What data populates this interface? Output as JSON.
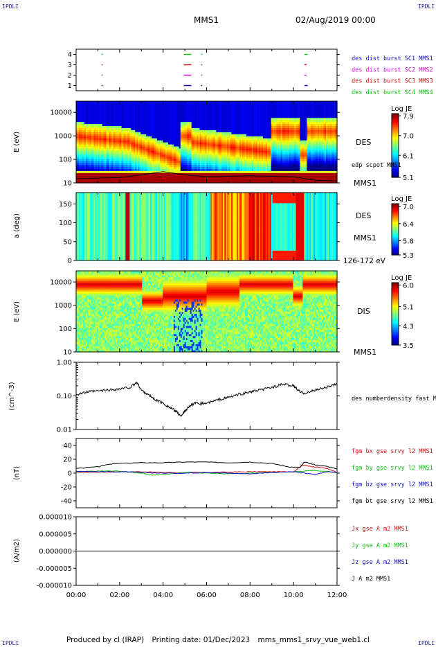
{
  "header": {
    "corner_label": "IPDLI",
    "spacecraft": "MMS1",
    "datetime": "02/Aug/2019 00:00"
  },
  "footer": {
    "produced_by": "Produced by cl (IRAP)",
    "printing_date": "Printing date: 01/Dec/2023",
    "script": "mms_mms1_srvy_vue_web1.cl"
  },
  "x_axis": {
    "range_hours": [
      0,
      12
    ],
    "tick_labels": [
      "00:00",
      "02:00",
      "04:00",
      "06:00",
      "08:00",
      "10:00",
      "12:00"
    ]
  },
  "colors": {
    "sc1": "#1010c8",
    "sc2": "#d010d0",
    "sc3": "#d01010",
    "sc4": "#10c010",
    "bx": "#d01010",
    "by": "#10c010",
    "bz": "#1010c8",
    "bt": "#000000"
  },
  "chart_data": [
    {
      "id": "burst",
      "type": "scatter",
      "y_ticks": [
        "4",
        "3",
        "2",
        "1"
      ],
      "ylim": [
        0.5,
        4.5
      ],
      "legend": [
        {
          "label": "des dist burst SC1 MMS1",
          "color": "#1010c8"
        },
        {
          "label": "des dist burst SC2 MMS2",
          "color": "#d010d0"
        },
        {
          "label": "des dist burst SC3 MMS3",
          "color": "#d01010"
        },
        {
          "label": "des dist burst SC4 MMS4",
          "color": "#10c010"
        }
      ],
      "intervals": [
        {
          "sc": 4,
          "start": 1.17,
          "end": 1.22
        },
        {
          "sc": 4,
          "start": 4.95,
          "end": 5.3
        },
        {
          "sc": 4,
          "start": 5.75,
          "end": 5.8
        },
        {
          "sc": 4,
          "start": 10.5,
          "end": 10.65
        },
        {
          "sc": 3,
          "start": 1.17,
          "end": 1.22
        },
        {
          "sc": 3,
          "start": 4.95,
          "end": 5.3
        },
        {
          "sc": 3,
          "start": 5.75,
          "end": 5.8
        },
        {
          "sc": 3,
          "start": 10.5,
          "end": 10.6
        },
        {
          "sc": 2,
          "start": 1.17,
          "end": 1.22
        },
        {
          "sc": 2,
          "start": 4.95,
          "end": 5.3
        },
        {
          "sc": 2,
          "start": 5.75,
          "end": 5.8
        },
        {
          "sc": 2,
          "start": 10.5,
          "end": 10.6
        },
        {
          "sc": 1,
          "start": 1.17,
          "end": 1.22
        },
        {
          "sc": 1,
          "start": 4.95,
          "end": 5.3
        },
        {
          "sc": 1,
          "start": 5.75,
          "end": 5.8
        },
        {
          "sc": 1,
          "start": 10.5,
          "end": 10.65
        }
      ]
    },
    {
      "id": "des_energy",
      "type": "heatmap",
      "ylabel": "E (eV)",
      "y_scale": "log",
      "ylim": [
        10,
        30000
      ],
      "y_ticks": [
        "10000",
        "1000",
        "100",
        "10"
      ],
      "colorbar": {
        "title": "Log JE",
        "ticks": [
          "7.9",
          "7.0",
          "6.1",
          "5.1"
        ],
        "range": [
          5.1,
          8.0
        ]
      },
      "right_labels": [
        "DES",
        "edp scpot MMS1",
        "MMS1"
      ],
      "spacecraft_potential_eV": [
        [
          0.0,
          15
        ],
        [
          2.0,
          17
        ],
        [
          3.0,
          22
        ],
        [
          4.0,
          30
        ],
        [
          5.0,
          22
        ],
        [
          6.0,
          18
        ],
        [
          8.0,
          20
        ],
        [
          10.0,
          18
        ],
        [
          11.0,
          13
        ],
        [
          12.0,
          12
        ]
      ]
    },
    {
      "id": "des_pitch",
      "type": "heatmap",
      "ylabel": "a (deg)",
      "ylim": [
        0,
        180
      ],
      "y_ticks": [
        "150",
        "100",
        "50",
        "0"
      ],
      "colorbar": {
        "title": "Log JE",
        "ticks": [
          "7.0",
          "6.4",
          "5.8",
          "5.3"
        ],
        "range": [
          5.3,
          7.1
        ]
      },
      "right_labels": [
        "DES",
        "MMS1",
        "126-172 eV"
      ]
    },
    {
      "id": "dis_energy",
      "type": "heatmap",
      "ylabel": "E (eV)",
      "y_scale": "log",
      "ylim": [
        10,
        30000
      ],
      "y_ticks": [
        "10000",
        "1000",
        "100",
        "10"
      ],
      "colorbar": {
        "title": "Log JE",
        "ticks": [
          "6.0",
          "5.1",
          "4.3",
          "3.5"
        ],
        "range": [
          3.5,
          6.1
        ]
      },
      "right_labels": [
        "DIS",
        "MMS1"
      ]
    },
    {
      "id": "density",
      "type": "line",
      "ylabel": "(cm^-3)",
      "y_scale": "log",
      "ylim": [
        0.01,
        1.0
      ],
      "y_ticks": [
        "1.00",
        "0.10",
        "0.01"
      ],
      "series": [
        {
          "name": "des numberdensity fast M",
          "color": "#000000",
          "x": [
            0.0,
            0.5,
            1.0,
            1.5,
            2.0,
            2.5,
            2.8,
            3.0,
            3.3,
            3.6,
            4.0,
            4.3,
            4.6,
            4.8,
            5.0,
            5.2,
            5.5,
            6.0,
            6.5,
            7.0,
            7.5,
            8.0,
            8.5,
            9.0,
            9.5,
            10.0,
            10.3,
            10.6,
            11.0,
            11.5,
            12.0
          ],
          "values": [
            0.11,
            0.13,
            0.14,
            0.15,
            0.16,
            0.18,
            0.25,
            0.15,
            0.11,
            0.08,
            0.06,
            0.045,
            0.035,
            0.025,
            0.035,
            0.05,
            0.06,
            0.06,
            0.075,
            0.09,
            0.11,
            0.13,
            0.15,
            0.18,
            0.22,
            0.2,
            0.13,
            0.12,
            0.15,
            0.18,
            0.22
          ]
        }
      ]
    },
    {
      "id": "magnetic_field",
      "type": "line",
      "ylabel": "(nT)",
      "ylim": [
        -50,
        50
      ],
      "y_ticks": [
        "40",
        "20",
        "0",
        "-20",
        "-40"
      ],
      "series": [
        {
          "name": "fgm bx gse srvy l2 MMS1",
          "color": "#d01010",
          "x": [
            0.0,
            1.0,
            2.0,
            3.0,
            4.0,
            5.0,
            6.0,
            7.0,
            8.0,
            9.0,
            10.0,
            10.4,
            10.7,
            11.0,
            11.5,
            12.0
          ],
          "values": [
            1,
            1.5,
            2,
            2,
            1,
            0.5,
            1,
            1.5,
            2,
            2,
            2,
            12,
            10,
            9,
            7,
            1
          ]
        },
        {
          "name": "fgm by gse srvy l2 MMS1",
          "color": "#10c010",
          "x": [
            0.0,
            1.0,
            2.0,
            3.0,
            3.5,
            4.0,
            5.0,
            6.0,
            7.0,
            8.0,
            9.0,
            10.0,
            10.5,
            11.0,
            12.0
          ],
          "values": [
            2,
            3,
            3,
            0,
            -3,
            -2,
            1,
            0,
            -1,
            0,
            1,
            2,
            3,
            4,
            1
          ]
        },
        {
          "name": "fgm bz gse srvy l2 MMS1",
          "color": "#1010c8",
          "x": [
            0.0,
            1.0,
            2.0,
            3.0,
            4.0,
            5.0,
            6.0,
            7.0,
            8.0,
            9.0,
            10.0,
            10.5,
            11.0,
            11.5,
            12.0
          ],
          "values": [
            3,
            2,
            2,
            1,
            0,
            0,
            1,
            0,
            -1,
            1,
            2,
            0,
            -2,
            2,
            1
          ]
        },
        {
          "name": "fgm bt gse srvy l2 MMS1",
          "color": "#000000",
          "x": [
            0.0,
            1.0,
            1.5,
            2.0,
            3.0,
            4.0,
            5.0,
            6.0,
            7.0,
            8.0,
            9.0,
            9.8,
            10.3,
            10.5,
            11.0,
            11.5,
            12.0
          ],
          "values": [
            7,
            9,
            13,
            14,
            15,
            15,
            16,
            16,
            15,
            16,
            14,
            9,
            8,
            16,
            12,
            10,
            6
          ]
        }
      ]
    },
    {
      "id": "current_density",
      "type": "line",
      "ylabel": "(A/m2)",
      "ylim": [
        -1e-05,
        1e-05
      ],
      "y_ticks": [
        "0.000010",
        "0.000005",
        "0.000000",
        "-0.000005",
        "-0.000010"
      ],
      "series": [
        {
          "name": "Jx gse A m2 MMS1",
          "color": "#d01010",
          "x": [
            0,
            12
          ],
          "values": [
            0,
            0
          ]
        },
        {
          "name": "Jy gse A m2 MMS1",
          "color": "#10c010",
          "x": [
            0,
            12
          ],
          "values": [
            0,
            0
          ]
        },
        {
          "name": "Jz gse A m2 MMS1",
          "color": "#1010c8",
          "x": [
            0,
            12
          ],
          "values": [
            0,
            0
          ]
        },
        {
          "name": "J A m2 MMS1",
          "color": "#000000",
          "x": [
            0,
            12
          ],
          "values": [
            0,
            0
          ]
        }
      ]
    }
  ]
}
